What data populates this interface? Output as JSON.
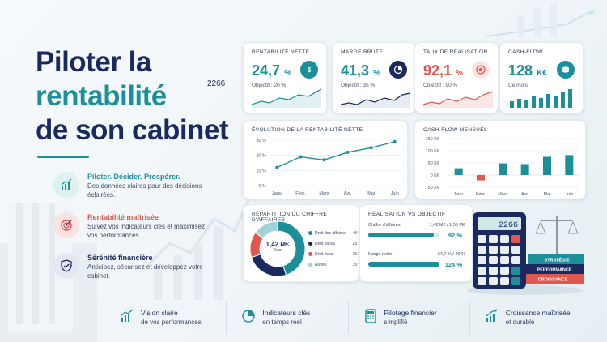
{
  "hero": {
    "line1": "Piloter la",
    "line2": "rentabilité",
    "line3": "de son cabinet",
    "badge": "2266"
  },
  "features": [
    {
      "title": "Piloter. Décider. Prospérer.",
      "desc": "Des données claires pour des décisions éclairées.",
      "icon": "chart-up-icon",
      "color": "#1b8f9a"
    },
    {
      "title": "Rentabilité maîtrisée",
      "desc": "Suivez vos indicateurs clés et maximisez vos performances.",
      "icon": "target-icon",
      "color": "#e0574f"
    },
    {
      "title": "Sérénité financière",
      "desc": "Anticipez, sécurisez et développez votre cabinet.",
      "icon": "shield-check-icon",
      "color": "#1a2a5e"
    }
  ],
  "kpis": [
    {
      "label": "RENTABILITÉ NETTE",
      "value": "24,7",
      "unit": "%",
      "sub": "Objectif : 20 %",
      "color": "#1b8f9a"
    },
    {
      "label": "MARGE BRUTE",
      "value": "41,3",
      "unit": "%",
      "sub": "Objectif : 35 %",
      "color": "#1b8f9a"
    },
    {
      "label": "TAUX DE RÉALISATION",
      "value": "92,1",
      "unit": "%",
      "sub": "Objectif : 90 %",
      "color": "#e0574f"
    },
    {
      "label": "CASH-FLOW",
      "value": "128",
      "unit": "K€",
      "sub": "Ce mois",
      "color": "#1b8f9a"
    }
  ],
  "evolution": {
    "title": "ÉVOLUTION DE LA RENTABILITÉ NETTE"
  },
  "cashflow": {
    "title": "CASH-FLOW MENSUEL"
  },
  "repartition": {
    "title": "RÉPARTITION DU CHIFFRE D'AFFAIRES",
    "center_value": "1,42 M€",
    "center_label": "Total",
    "items": [
      {
        "name": "Droit des affaires",
        "pct": "45 %",
        "color": "#1b8f9a",
        "value": 45
      },
      {
        "name": "Droit social",
        "pct": "25 %",
        "color": "#1a2a5e",
        "value": 25
      },
      {
        "name": "Droit fiscal",
        "pct": "15 %",
        "color": "#e0574f",
        "value": 15
      },
      {
        "name": "Autres",
        "pct": "15 %",
        "color": "#9fd3d6",
        "value": 15
      }
    ]
  },
  "realisation": {
    "title": "RÉALISATION VS OBJECTIF",
    "rows": [
      {
        "label": "Chiffre d'affaires",
        "detail": "1,42 M€ / 1,55 M€",
        "pct": "92 %",
        "progress": 0.92
      },
      {
        "label": "Marge nette",
        "detail": "24,7 % / 20 %",
        "pct": "124 %",
        "progress": 1.0
      }
    ]
  },
  "calculator": {
    "display": "2266"
  },
  "books": [
    "STRATÉGIE",
    "PERFORMANCE",
    "CROISSANCE"
  ],
  "bottom": [
    {
      "line1": "Vision claire",
      "line2": "de vos performances",
      "icon": "chart-up-icon"
    },
    {
      "line1": "Indicateurs clés",
      "line2": "en temps réel",
      "icon": "pie-chart-icon"
    },
    {
      "line1": "Pilotage financier",
      "line2": "simplifié",
      "icon": "calculator-icon"
    },
    {
      "line1": "Croissance maîtrisée",
      "line2": "et durable",
      "icon": "growth-arrow-icon"
    }
  ],
  "chart_data": [
    {
      "type": "line",
      "title": "ÉVOLUTION DE LA RENTABILITÉ NETTE",
      "categories": [
        "Janv.",
        "Févr.",
        "Mars",
        "Avr.",
        "Mai",
        "Juin"
      ],
      "values": [
        12,
        19,
        17,
        22,
        25,
        29
      ],
      "yticks": [
        "0 %",
        "10 %",
        "20 %",
        "30 %"
      ],
      "ylim": [
        0,
        30
      ],
      "color": "#1b8f9a"
    },
    {
      "type": "bar",
      "title": "CASH-FLOW MENSUEL",
      "categories": [
        "Janv.",
        "Févr.",
        "Mars",
        "Avr.",
        "Mai",
        "Juin"
      ],
      "values": [
        28,
        -22,
        48,
        45,
        75,
        82
      ],
      "yticks": [
        "150 K€",
        "100 K€",
        "50 K€",
        "0 K€",
        "-50 K€"
      ],
      "ylim": [
        -50,
        150
      ],
      "positive_color": "#1b8f9a",
      "negative_color": "#e0574f"
    }
  ]
}
